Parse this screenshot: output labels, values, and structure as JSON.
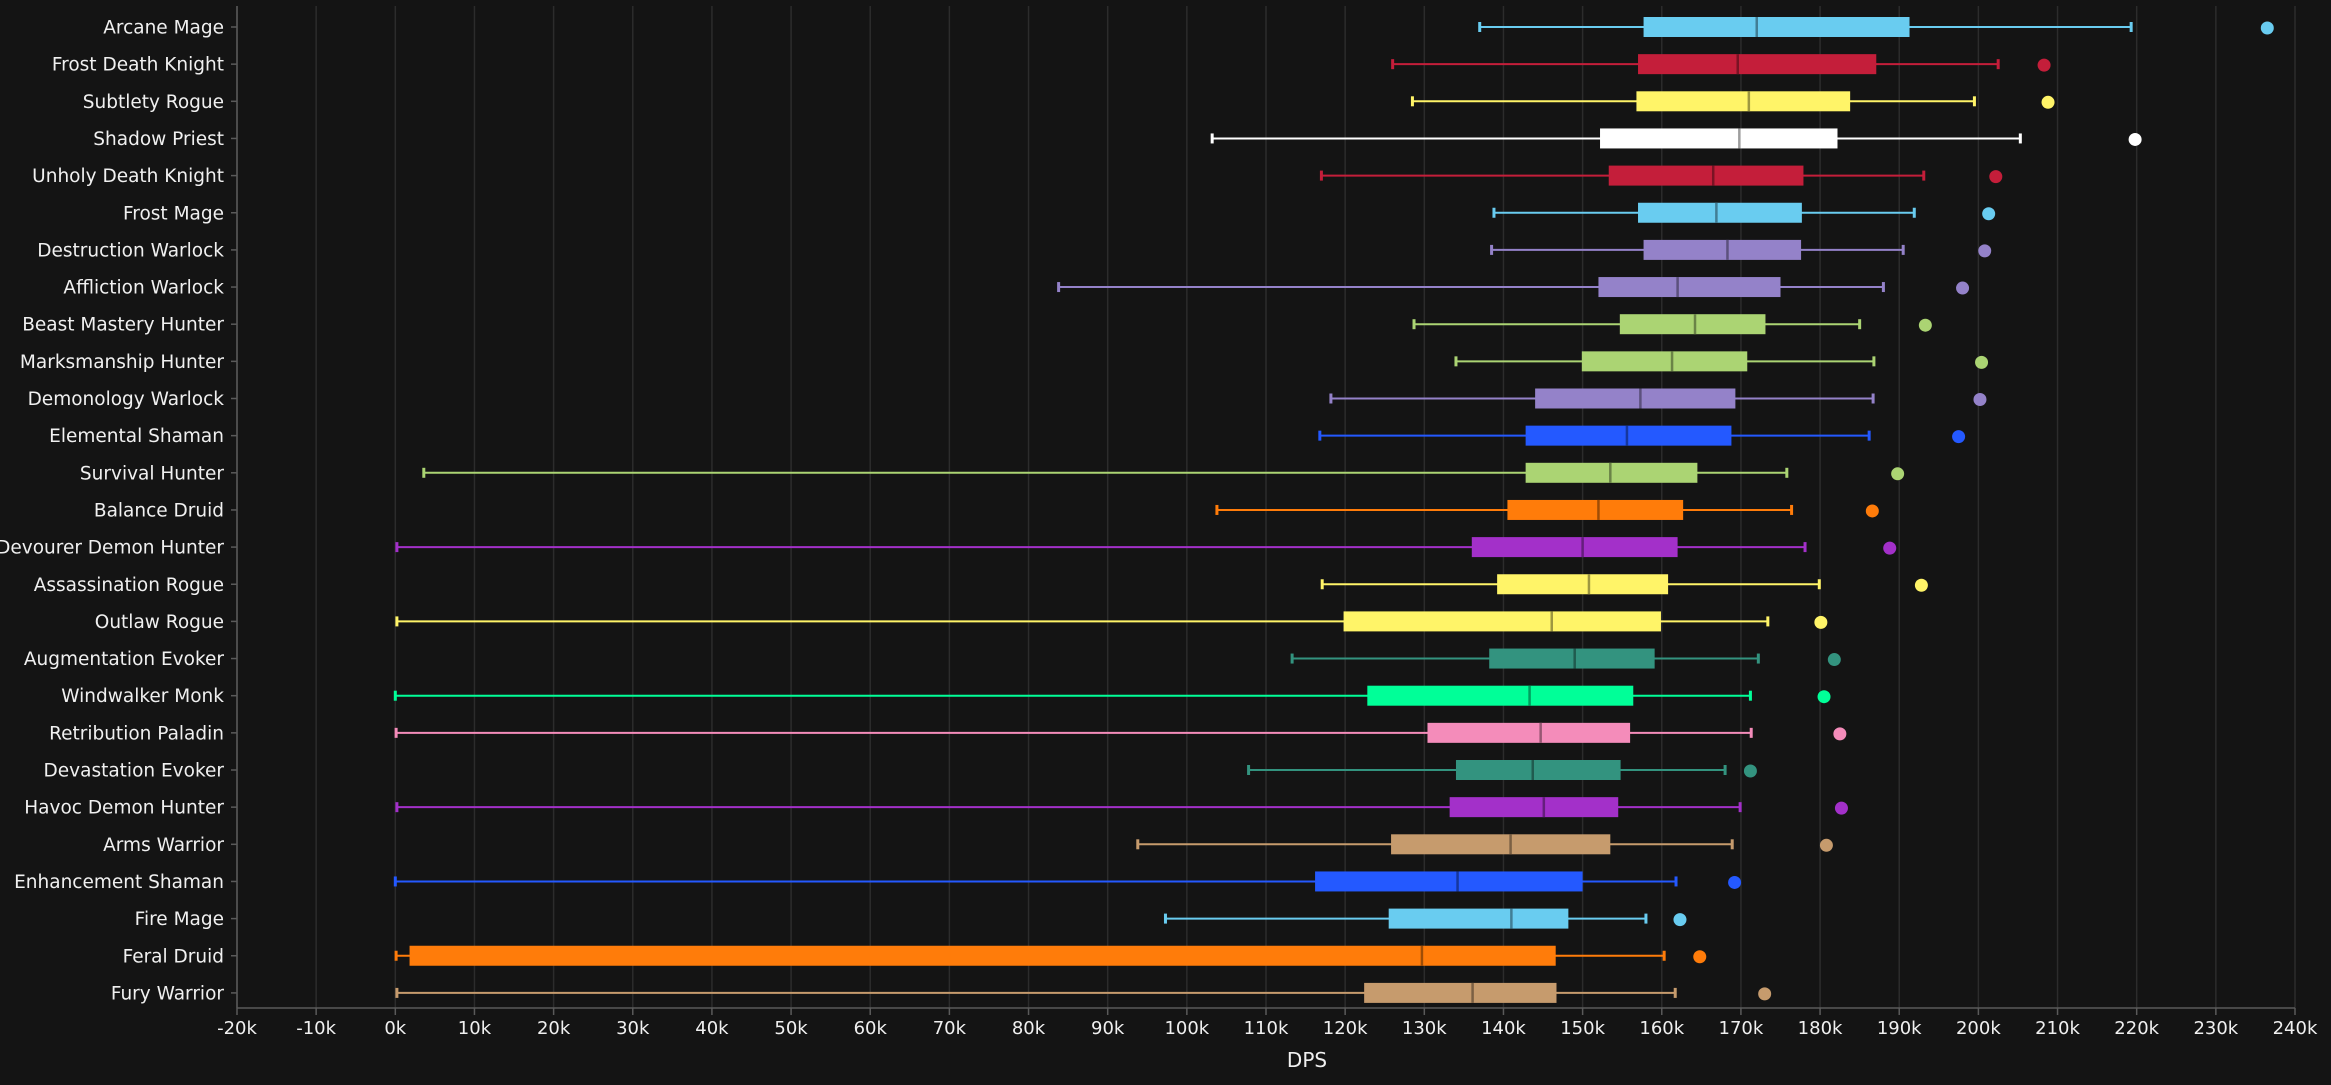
{
  "chart_data": {
    "type": "box",
    "orientation": "horizontal",
    "xlabel": "DPS",
    "xlim": [
      -20000,
      240000
    ],
    "tick_step": 10000,
    "tick_labels": [
      "-20k",
      "-10k",
      "0k",
      "10k",
      "20k",
      "30k",
      "40k",
      "50k",
      "60k",
      "70k",
      "80k",
      "90k",
      "100k",
      "110k",
      "120k",
      "130k",
      "140k",
      "150k",
      "160k",
      "170k",
      "180k",
      "190k",
      "200k",
      "210k",
      "220k",
      "230k",
      "240k"
    ],
    "grid": true,
    "legend": "none",
    "series": [
      {
        "name": "Arcane Mage",
        "color": "#69ccf0",
        "min": 137000,
        "q1": 157700,
        "median": 172000,
        "q3": 191300,
        "max": 219300,
        "outlier": 236500
      },
      {
        "name": "Frost Death Knight",
        "color": "#c41e3a",
        "min": 126000,
        "q1": 157000,
        "median": 169600,
        "q3": 187100,
        "max": 202500,
        "outlier": 208300
      },
      {
        "name": "Subtlety Rogue",
        "color": "#fff468",
        "min": 128500,
        "q1": 156800,
        "median": 171000,
        "q3": 183800,
        "max": 199500,
        "outlier": 208800
      },
      {
        "name": "Shadow Priest",
        "color": "#ffffff",
        "min": 103200,
        "q1": 152200,
        "median": 169800,
        "q3": 182200,
        "max": 205300,
        "outlier": 219800
      },
      {
        "name": "Unholy Death Knight",
        "color": "#c41e3a",
        "min": 117000,
        "q1": 153300,
        "median": 166500,
        "q3": 177900,
        "max": 193100,
        "outlier": 202200
      },
      {
        "name": "Frost Mage",
        "color": "#69ccf0",
        "min": 138800,
        "q1": 157000,
        "median": 166900,
        "q3": 177700,
        "max": 191900,
        "outlier": 201300
      },
      {
        "name": "Destruction Warlock",
        "color": "#9482c9",
        "min": 138500,
        "q1": 157700,
        "median": 168300,
        "q3": 177600,
        "max": 190500,
        "outlier": 200800
      },
      {
        "name": "Affliction Warlock",
        "color": "#9482c9",
        "min": 83800,
        "q1": 152000,
        "median": 162000,
        "q3": 175000,
        "max": 188000,
        "outlier": 198000
      },
      {
        "name": "Beast Mastery Hunter",
        "color": "#abd473",
        "min": 128700,
        "q1": 154700,
        "median": 164200,
        "q3": 173100,
        "max": 185000,
        "outlier": 193300
      },
      {
        "name": "Marksmanship Hunter",
        "color": "#abd473",
        "min": 134000,
        "q1": 149900,
        "median": 161300,
        "q3": 170800,
        "max": 186800,
        "outlier": 200400
      },
      {
        "name": "Demonology Warlock",
        "color": "#9482c9",
        "min": 118200,
        "q1": 144000,
        "median": 157300,
        "q3": 169300,
        "max": 186700,
        "outlier": 200200
      },
      {
        "name": "Elemental Shaman",
        "color": "#2459ff",
        "min": 116800,
        "q1": 142800,
        "median": 155600,
        "q3": 168800,
        "max": 186200,
        "outlier": 197500
      },
      {
        "name": "Survival Hunter",
        "color": "#abd473",
        "min": 3600,
        "q1": 142800,
        "median": 153500,
        "q3": 164500,
        "max": 175800,
        "outlier": 189800
      },
      {
        "name": "Balance Druid",
        "color": "#ff7c0a",
        "min": 103800,
        "q1": 140500,
        "median": 152000,
        "q3": 162700,
        "max": 176400,
        "outlier": 186600
      },
      {
        "name": "Devourer Demon Hunter",
        "color": "#a330c9",
        "min": 200,
        "q1": 136000,
        "median": 150000,
        "q3": 162000,
        "max": 178100,
        "outlier": 188800
      },
      {
        "name": "Assassination Rogue",
        "color": "#fff468",
        "min": 117100,
        "q1": 139200,
        "median": 150800,
        "q3": 160800,
        "max": 179900,
        "outlier": 192800
      },
      {
        "name": "Outlaw Rogue",
        "color": "#fff468",
        "min": 200,
        "q1": 119800,
        "median": 146100,
        "q3": 159900,
        "max": 173400,
        "outlier": 180100
      },
      {
        "name": "Augmentation Evoker",
        "color": "#33937f",
        "min": 113300,
        "q1": 138200,
        "median": 149000,
        "q3": 159100,
        "max": 172200,
        "outlier": 181800
      },
      {
        "name": "Windwalker Monk",
        "color": "#00ff98",
        "min": 0,
        "q1": 122800,
        "median": 143300,
        "q3": 156400,
        "max": 171200,
        "outlier": 180500
      },
      {
        "name": "Retribution Paladin",
        "color": "#f48cba",
        "min": 100,
        "q1": 130400,
        "median": 144700,
        "q3": 156000,
        "max": 171300,
        "outlier": 182500
      },
      {
        "name": "Devastation Evoker",
        "color": "#33937f",
        "min": 107800,
        "q1": 134000,
        "median": 143700,
        "q3": 154800,
        "max": 168000,
        "outlier": 171200
      },
      {
        "name": "Havoc Demon Hunter",
        "color": "#a330c9",
        "min": 200,
        "q1": 133200,
        "median": 145100,
        "q3": 154500,
        "max": 169900,
        "outlier": 182700
      },
      {
        "name": "Arms Warrior",
        "color": "#c69b6d",
        "min": 93800,
        "q1": 125800,
        "median": 140900,
        "q3": 153500,
        "max": 168900,
        "outlier": 180800
      },
      {
        "name": "Enhancement Shaman",
        "color": "#2459ff",
        "min": 0,
        "q1": 116200,
        "median": 134200,
        "q3": 150000,
        "max": 161800,
        "outlier": 169200
      },
      {
        "name": "Fire Mage",
        "color": "#69ccf0",
        "min": 97300,
        "q1": 125500,
        "median": 141000,
        "q3": 148200,
        "max": 158000,
        "outlier": 162300
      },
      {
        "name": "Feral Druid",
        "color": "#ff7c0a",
        "min": 100,
        "q1": 1800,
        "median": 129700,
        "q3": 146600,
        "max": 160300,
        "outlier": 164800
      },
      {
        "name": "Fury Warrior",
        "color": "#c69b6d",
        "min": 200,
        "q1": 122400,
        "median": 136100,
        "q3": 146700,
        "max": 161700,
        "outlier": 173000
      }
    ]
  }
}
